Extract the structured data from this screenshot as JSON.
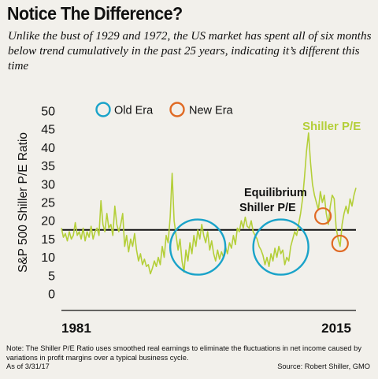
{
  "header": {
    "title": "Notice The Difference?",
    "subtitle": "Unlike the bust of 1929 and 1972, the US market has spent all of six months below trend cumulatively in the past 25 years, indicating it’s different this time"
  },
  "footer": {
    "note": "Note: The Shiller P/E Ratio uses smoothed real earnings to eliminate the fluctuations in net income caused by variations in profit margins over a typical business cycle.",
    "as_of": "As of 3/31/17",
    "source": "Source: Robert Shiller, GMO"
  },
  "colors": {
    "series": "#b4cf39",
    "old_era": "#1aa3c9",
    "new_era": "#e06a24",
    "equilibrium": "#111111",
    "background": "#f2f0eb"
  },
  "chart_data": {
    "type": "line",
    "ylabel": "S&P 500 Shiller P/E Ratio",
    "ylim": [
      0,
      50
    ],
    "yticks": [
      "0",
      "5",
      "10",
      "15",
      "20",
      "25",
      "30",
      "35",
      "40",
      "45",
      "50"
    ],
    "xtick_labels": [
      "1981",
      "2015"
    ],
    "grid": false,
    "legend": {
      "placement": "top",
      "entries": [
        {
          "label": "Old Era",
          "marker": "circle",
          "color": "#1aa3c9"
        },
        {
          "label": "New Era",
          "marker": "circle",
          "color": "#e06a24"
        }
      ]
    },
    "series": [
      {
        "name": "Shiller P/E",
        "values": [
          18.0,
          15.5,
          16.5,
          14.5,
          17.0,
          15.0,
          16.0,
          19.5,
          16.0,
          17.0,
          15.0,
          18.0,
          14.5,
          17.0,
          15.5,
          18.5,
          15.0,
          17.0,
          18.0,
          16.0,
          25.5,
          19.0,
          17.0,
          22.0,
          18.0,
          19.0,
          16.0,
          24.0,
          19.0,
          17.0,
          19.0,
          22.0,
          13.0,
          16.0,
          11.5,
          15.0,
          13.0,
          16.5,
          12.0,
          9.0,
          11.0,
          8.0,
          9.5,
          7.5,
          8.0,
          5.5,
          7.0,
          9.0,
          7.5,
          10.0,
          8.0,
          13.0,
          10.0,
          16.0,
          14.0,
          21.0,
          33.0,
          20.0,
          16.0,
          12.0,
          15.0,
          9.0,
          6.0,
          12.0,
          9.0,
          14.0,
          11.0,
          16.0,
          13.0,
          17.5,
          15.0,
          19.0,
          16.0,
          14.0,
          17.0,
          12.0,
          14.5,
          11.0,
          9.0,
          12.0,
          9.5,
          11.5,
          10.0,
          13.0,
          11.0,
          14.0,
          12.5,
          16.0,
          13.5,
          18.0,
          17.0,
          20.0,
          18.0,
          21.0,
          18.5,
          18.0,
          20.0,
          17.0,
          16.0,
          15.0,
          13.0,
          12.0,
          10.5,
          8.0,
          10.0,
          7.5,
          11.0,
          9.0,
          12.5,
          10.0,
          13.0,
          11.0,
          12.0,
          8.0,
          10.0,
          9.0,
          13.0,
          15.0,
          17.0,
          16.0,
          19.0,
          22.0,
          26.0,
          32.0,
          39.0,
          44.0,
          36.0,
          30.0,
          27.0,
          25.0,
          23.0,
          28.0,
          25.0,
          27.0,
          22.0,
          19.0,
          24.0,
          27.0,
          26.0,
          18.0,
          15.0,
          13.0,
          19.0,
          22.0,
          24.0,
          22.0,
          26.0,
          24.0,
          27.0,
          29.0
        ]
      }
    ],
    "annotations": [
      {
        "text": "Shiller P/E",
        "color": "#b4cf39"
      },
      {
        "text": "Equilibrium",
        "color": "#111111"
      },
      {
        "text": "Shiller P/E",
        "color": "#111111"
      }
    ],
    "equilibrium_value": 17.5,
    "old_era_circles": [
      {
        "x_fraction": 0.463,
        "y": 12.8
      },
      {
        "x_fraction": 0.745,
        "y": 12.8
      }
    ],
    "new_era_circles": [
      {
        "x_fraction": 0.888,
        "y": 21.3
      },
      {
        "x_fraction": 0.946,
        "y": 13.8
      }
    ]
  }
}
